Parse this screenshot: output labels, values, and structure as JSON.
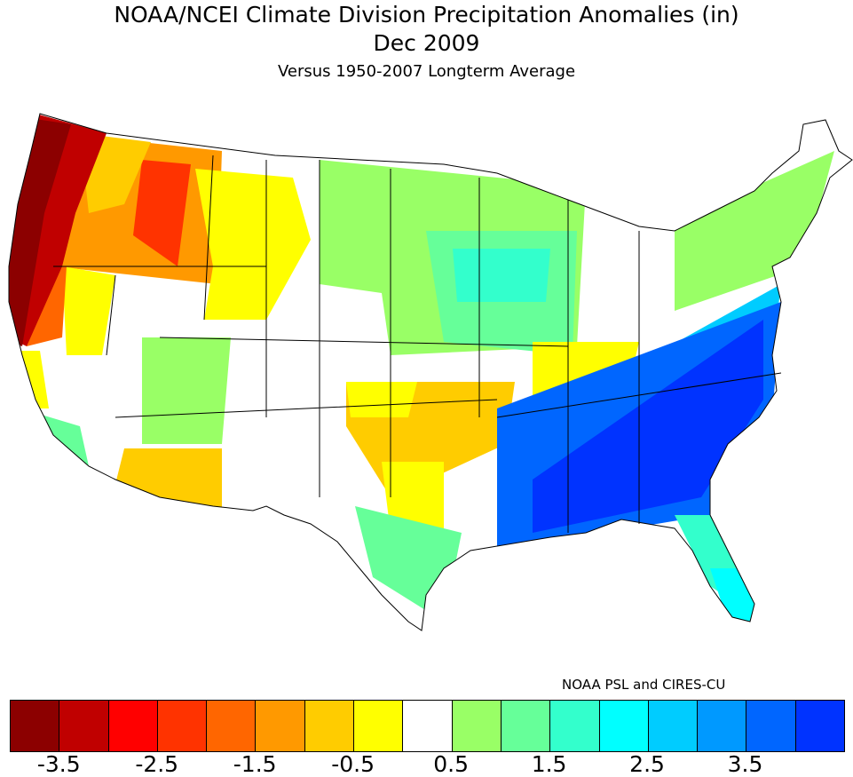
{
  "title": "NOAA/NCEI Climate Division Precipitation Anomalies (in)",
  "period": "Dec 2009",
  "subtitle": "Versus 1950-2007 Longterm Average",
  "credit": "NOAA PSL and CIRES-CU",
  "legend": {
    "colors": [
      "#8c0000",
      "#c00000",
      "#ff0000",
      "#ff3300",
      "#ff6600",
      "#ff9900",
      "#ffcc00",
      "#ffff00",
      "#ffffff",
      "#99ff66",
      "#66ff99",
      "#33ffcc",
      "#00ffff",
      "#00ccff",
      "#0099ff",
      "#0066ff",
      "#0033ff"
    ],
    "labels": [
      "-3.5",
      "-2.5",
      "-1.5",
      "-0.5",
      "0.5",
      "1.5",
      "2.5",
      "3.5"
    ]
  },
  "map": {
    "patterns": [
      {
        "area": "Pacific Northwest coast / northern California",
        "anomaly_class": "-3.5 and below"
      },
      {
        "area": "Oregon / Washington interior",
        "anomaly_class": "-1.5 to -1"
      },
      {
        "area": "Idaho",
        "anomaly_class": "-2.5 to -2"
      },
      {
        "area": "Montana / Wyoming / Nevada",
        "anomaly_class": "-0.5"
      },
      {
        "area": "Northern & central Plains",
        "anomaly_class": "0.5 to 1.5"
      },
      {
        "area": "Oklahoma / north Texas",
        "anomaly_class": "-1 to -0.5"
      },
      {
        "area": "Southeast / Gulf Coast / Mid-Atlantic",
        "anomaly_class": "2.5 and above"
      },
      {
        "area": "Florida",
        "anomaly_class": "2 to 2.5"
      }
    ]
  }
}
